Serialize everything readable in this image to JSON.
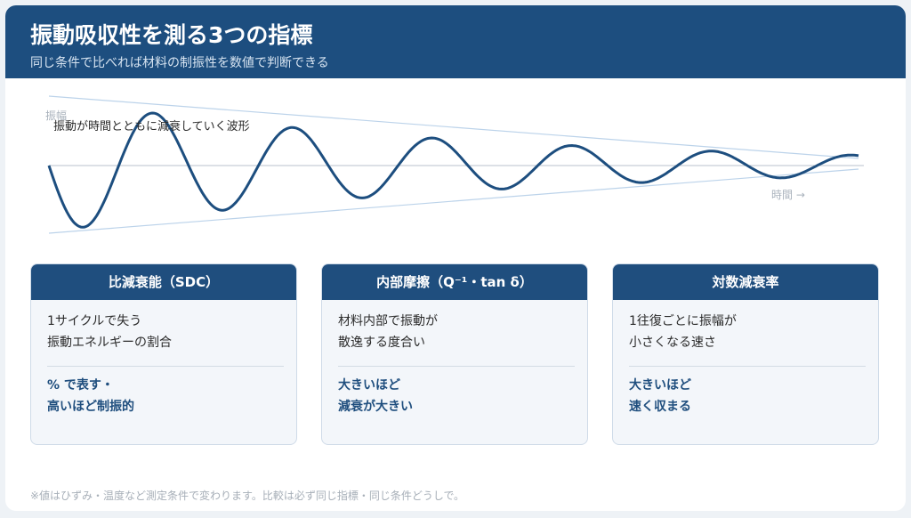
{
  "header": {
    "title": "振動吸収性を測る3つの指標",
    "subtitle": "同じ条件で比べれば材料の制振性を数値で判断できる"
  },
  "wave": {
    "y_label": "振幅",
    "caption": "振動が時間とともに減衰していく波形",
    "x_label": "時間 →"
  },
  "cards": [
    {
      "title": "比減衰能（SDC）",
      "description": [
        "1サイクルで失う",
        "振動エネルギーの割合"
      ],
      "emphasis": [
        "% で表す・",
        "高いほど制振的"
      ]
    },
    {
      "title": "内部摩擦（Q⁻¹・tan δ）",
      "description": [
        "材料内部で振動が",
        "散逸する度合い"
      ],
      "emphasis": [
        "大きいほど",
        "減衰が大きい"
      ]
    },
    {
      "title": "対数減衰率",
      "description": [
        "1往復ごとに振幅が",
        "小さくなる速さ"
      ],
      "emphasis": [
        "大きいほど",
        "速く収まる"
      ]
    }
  ],
  "footnote": "※値はひずみ・温度など測定条件で変わります。比較は必ず同じ指標・同じ条件どうしで。"
}
